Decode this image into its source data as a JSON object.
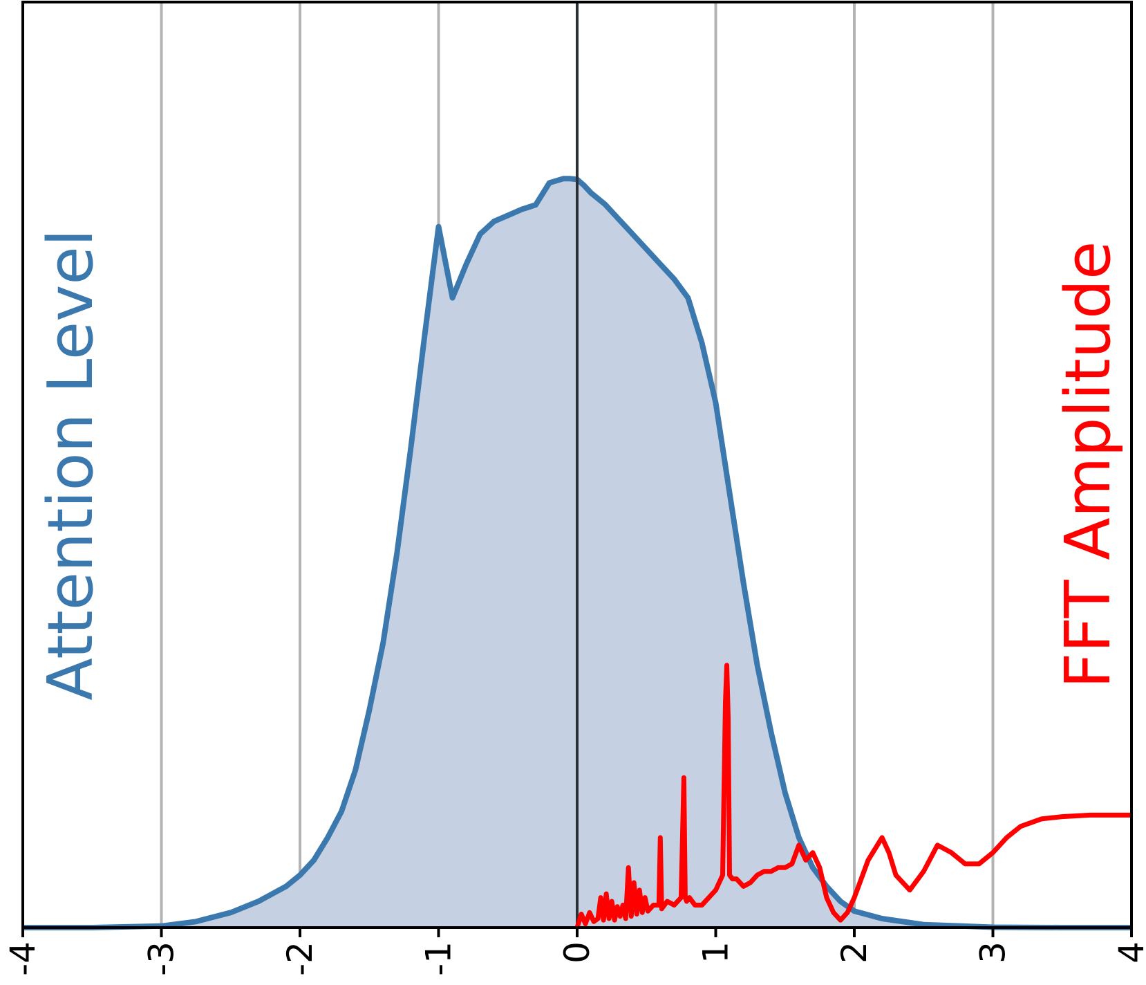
{
  "chart_data": {
    "type": "area",
    "xlim": [
      -4,
      4
    ],
    "x_ticks": [
      "-4",
      "-3",
      "-2",
      "-1",
      "0",
      "1",
      "2",
      "3",
      "4"
    ],
    "grid": "vertical",
    "left_ylabel": "Attention Level",
    "right_ylabel": "FFT Amplitude",
    "colors": {
      "attention_line": "#3a78ad",
      "attention_fill": "#c5d1e2",
      "fft_line": "#ff0000",
      "grid": "#b3b3b3",
      "zero_line": "#2b2f36"
    },
    "series": [
      {
        "axis": "left",
        "style": "line-filled",
        "ylim": [
          0,
          1
        ],
        "x": [
          -4.0,
          -3.5,
          -3.0,
          -2.75,
          -2.5,
          -2.3,
          -2.1,
          -2.0,
          -1.9,
          -1.8,
          -1.7,
          -1.6,
          -1.5,
          -1.4,
          -1.3,
          -1.2,
          -1.1,
          -1.0,
          -0.9,
          -0.8,
          -0.7,
          -0.6,
          -0.5,
          -0.4,
          -0.3,
          -0.2,
          -0.1,
          -0.05,
          0.0,
          0.05,
          0.1,
          0.2,
          0.35,
          0.5,
          0.6,
          0.7,
          0.8,
          0.9,
          1.0,
          1.1,
          1.2,
          1.3,
          1.4,
          1.5,
          1.6,
          1.7,
          1.8,
          1.9,
          2.0,
          2.2,
          2.5,
          3.0,
          3.5,
          4.0
        ],
        "y": [
          0.0,
          0.0,
          0.002,
          0.008,
          0.02,
          0.035,
          0.055,
          0.07,
          0.09,
          0.12,
          0.155,
          0.21,
          0.29,
          0.38,
          0.5,
          0.64,
          0.79,
          0.935,
          0.84,
          0.885,
          0.925,
          0.942,
          0.95,
          0.958,
          0.964,
          0.9935,
          0.999,
          0.999,
          0.998,
          0.99,
          0.98,
          0.965,
          0.935,
          0.905,
          0.885,
          0.865,
          0.84,
          0.78,
          0.7,
          0.58,
          0.46,
          0.35,
          0.26,
          0.18,
          0.12,
          0.08,
          0.055,
          0.035,
          0.022,
          0.012,
          0.004,
          0.0005,
          0.0,
          0.0
        ]
      },
      {
        "axis": "right",
        "style": "line",
        "ylim": [
          0,
          1
        ],
        "x": [
          0.0,
          0.03,
          0.06,
          0.09,
          0.12,
          0.15,
          0.17,
          0.19,
          0.21,
          0.23,
          0.25,
          0.27,
          0.29,
          0.31,
          0.33,
          0.35,
          0.37,
          0.39,
          0.41,
          0.43,
          0.45,
          0.47,
          0.49,
          0.51,
          0.55,
          0.59,
          0.6,
          0.61,
          0.65,
          0.7,
          0.75,
          0.77,
          0.78,
          0.79,
          0.81,
          0.85,
          0.9,
          0.95,
          1.0,
          1.05,
          1.07,
          1.08,
          1.09,
          1.1,
          1.12,
          1.15,
          1.2,
          1.25,
          1.3,
          1.35,
          1.4,
          1.45,
          1.5,
          1.55,
          1.6,
          1.65,
          1.7,
          1.75,
          1.8,
          1.85,
          1.9,
          1.95,
          2.0,
          2.05,
          2.1,
          2.2,
          2.25,
          2.3,
          2.4,
          2.5,
          2.6,
          2.7,
          2.8,
          2.9,
          3.0,
          3.1,
          3.2,
          3.35,
          3.5,
          3.7,
          4.0
        ],
        "y": [
          0.0,
          0.018,
          0.005,
          0.02,
          0.008,
          0.012,
          0.04,
          0.01,
          0.045,
          0.012,
          0.035,
          0.01,
          0.028,
          0.015,
          0.03,
          0.012,
          0.08,
          0.015,
          0.06,
          0.018,
          0.05,
          0.02,
          0.04,
          0.022,
          0.03,
          0.03,
          0.12,
          0.025,
          0.035,
          0.03,
          0.04,
          0.2,
          0.04,
          0.035,
          0.04,
          0.03,
          0.03,
          0.04,
          0.05,
          0.07,
          0.3,
          0.35,
          0.28,
          0.07,
          0.065,
          0.065,
          0.055,
          0.06,
          0.07,
          0.075,
          0.075,
          0.08,
          0.08,
          0.085,
          0.11,
          0.09,
          0.1,
          0.08,
          0.04,
          0.02,
          0.01,
          0.02,
          0.04,
          0.065,
          0.09,
          0.12,
          0.1,
          0.07,
          0.05,
          0.075,
          0.11,
          0.1,
          0.085,
          0.085,
          0.1,
          0.12,
          0.135,
          0.145,
          0.148,
          0.15,
          0.15
        ]
      }
    ]
  }
}
